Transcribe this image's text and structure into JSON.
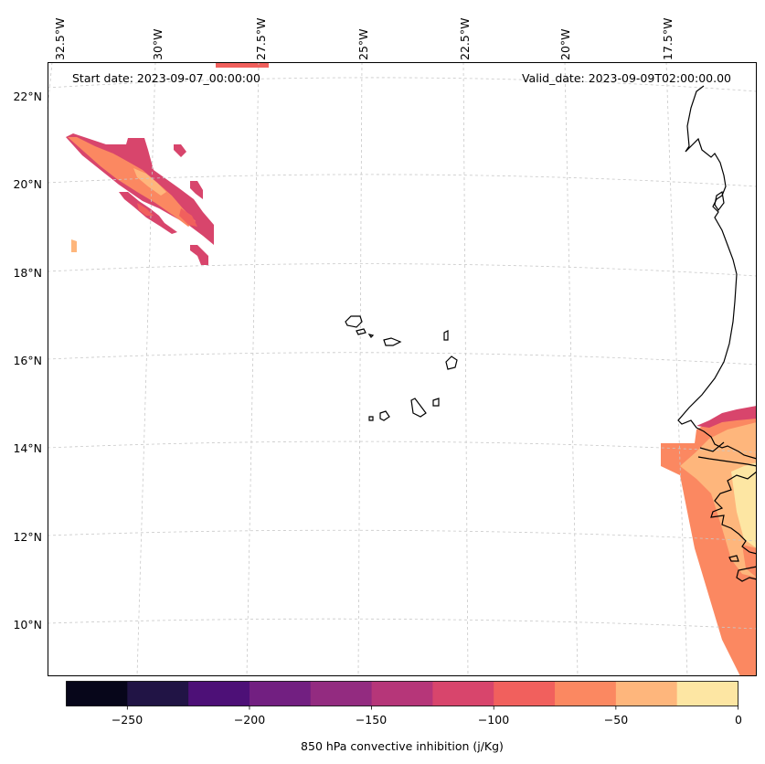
{
  "map": {
    "start_date": "Start date: 2023-09-07_00:00:00",
    "valid_date": "Valid_date: 2023-09-09T02:00:00.00",
    "lon_labels": [
      "32.5°W",
      "30°W",
      "27.5°W",
      "25°W",
      "22.5°W",
      "20°W",
      "17.5°W"
    ],
    "lat_labels": [
      "22°N",
      "20°N",
      "18°N",
      "16°N",
      "14°N",
      "12°N",
      "10°N"
    ],
    "features": [
      "Cabo Verde islands",
      "West African coastline"
    ]
  },
  "colorbar": {
    "label": "850 hPa convective inhibition (j/Kg)",
    "tick_labels": [
      "−250",
      "−200",
      "−150",
      "−100",
      "−50",
      "0"
    ],
    "levels": [
      -275,
      -250,
      -225,
      -200,
      -175,
      -150,
      -125,
      -100,
      -75,
      -50,
      -25,
      0
    ],
    "colors": [
      "#07061a",
      "#211445",
      "#4d1077",
      "#721f81",
      "#932b80",
      "#b63679",
      "#d8456c",
      "#f1605d",
      "#fb8861",
      "#feb67c",
      "#fde6a3"
    ]
  }
}
